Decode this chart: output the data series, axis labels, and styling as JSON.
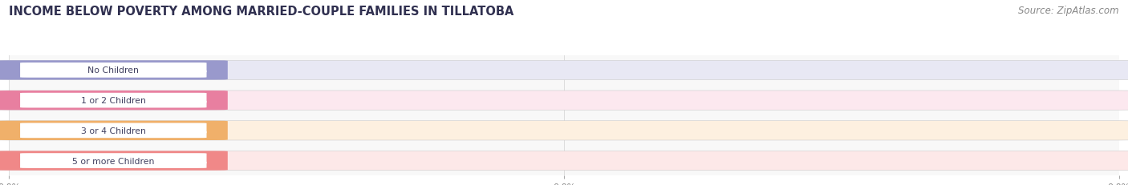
{
  "title": "INCOME BELOW POVERTY AMONG MARRIED-COUPLE FAMILIES IN TILLATOBA",
  "source": "Source: ZipAtlas.com",
  "categories": [
    "No Children",
    "1 or 2 Children",
    "3 or 4 Children",
    "5 or more Children"
  ],
  "values": [
    0.0,
    0.0,
    0.0,
    0.0
  ],
  "bar_colors": [
    "#9999cc",
    "#e87fa0",
    "#f0b06a",
    "#f08888"
  ],
  "bar_bg_colors": [
    "#e8e8f4",
    "#fce8ef",
    "#fdf0e0",
    "#fde8e8"
  ],
  "title_fontsize": 10.5,
  "source_fontsize": 8.5,
  "category_color": "#404060",
  "background_color": "#ffffff",
  "plot_bg_color": "#f8f8f8",
  "grid_color": "#d8d8d8",
  "tick_color": "#888888",
  "value_label_color": "#ffffff"
}
